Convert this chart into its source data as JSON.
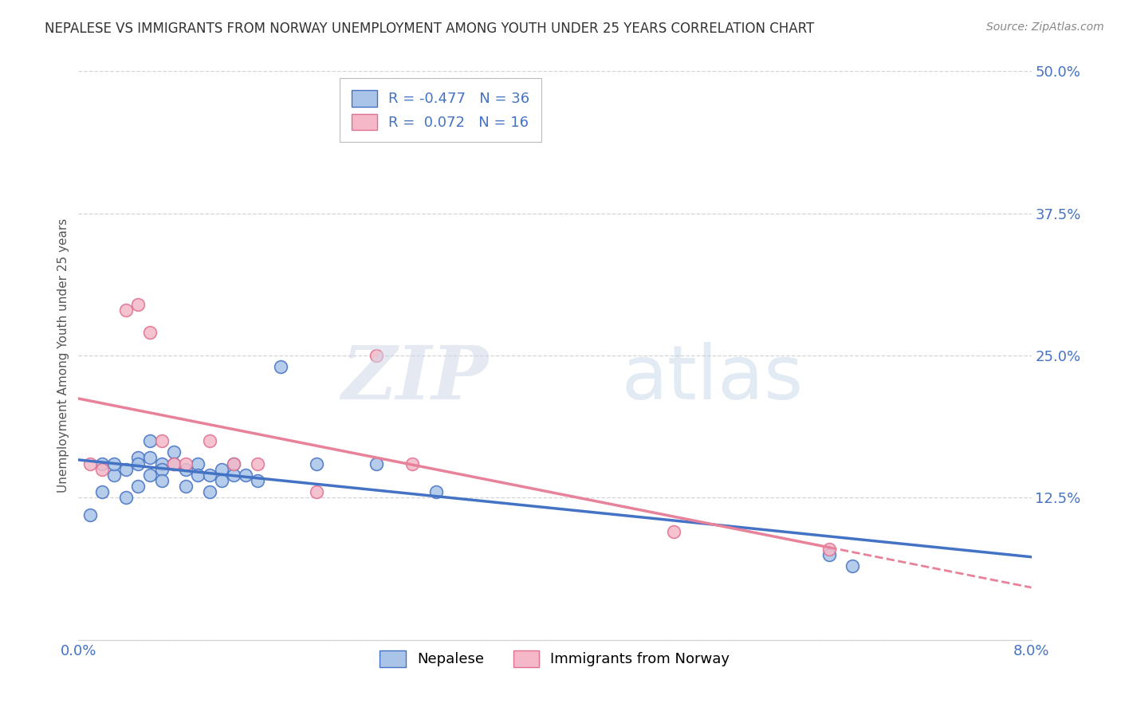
{
  "title": "NEPALESE VS IMMIGRANTS FROM NORWAY UNEMPLOYMENT AMONG YOUTH UNDER 25 YEARS CORRELATION CHART",
  "source": "Source: ZipAtlas.com",
  "ylabel": "Unemployment Among Youth under 25 years",
  "xmin": 0.0,
  "xmax": 0.08,
  "ymin": 0.0,
  "ymax": 0.5,
  "yticks": [
    0.0,
    0.125,
    0.25,
    0.375,
    0.5
  ],
  "ytick_labels": [
    "",
    "12.5%",
    "25.0%",
    "37.5%",
    "50.0%"
  ],
  "xticks": [
    0.0,
    0.02,
    0.04,
    0.06,
    0.08
  ],
  "xtick_labels": [
    "0.0%",
    "",
    "",
    "",
    "8.0%"
  ],
  "nepalese_color": "#aac4e8",
  "norway_color": "#f4b8c8",
  "nepalese_edge_color": "#4472c4",
  "norway_edge_color": "#e07090",
  "nepalese_line_color": "#4472c4",
  "norway_line_color": "#e8829a",
  "label_color": "#4472c4",
  "R_nepalese": -0.477,
  "N_nepalese": 36,
  "R_norway": 0.072,
  "N_norway": 16,
  "legend_label_nepalese": "Nepalese",
  "legend_label_norway": "Immigrants from Norway",
  "nepalese_x": [
    0.001,
    0.002,
    0.002,
    0.003,
    0.003,
    0.004,
    0.004,
    0.005,
    0.005,
    0.005,
    0.006,
    0.006,
    0.006,
    0.007,
    0.007,
    0.007,
    0.008,
    0.008,
    0.009,
    0.009,
    0.01,
    0.01,
    0.011,
    0.011,
    0.012,
    0.012,
    0.013,
    0.013,
    0.014,
    0.015,
    0.017,
    0.02,
    0.025,
    0.03,
    0.063,
    0.065
  ],
  "nepalese_y": [
    0.11,
    0.13,
    0.155,
    0.145,
    0.155,
    0.125,
    0.15,
    0.16,
    0.155,
    0.135,
    0.175,
    0.16,
    0.145,
    0.155,
    0.15,
    0.14,
    0.165,
    0.155,
    0.15,
    0.135,
    0.155,
    0.145,
    0.145,
    0.13,
    0.15,
    0.14,
    0.155,
    0.145,
    0.145,
    0.14,
    0.24,
    0.155,
    0.155,
    0.13,
    0.075,
    0.065
  ],
  "norway_x": [
    0.001,
    0.002,
    0.004,
    0.005,
    0.006,
    0.007,
    0.008,
    0.009,
    0.011,
    0.013,
    0.015,
    0.02,
    0.025,
    0.028,
    0.05,
    0.063
  ],
  "norway_y": [
    0.155,
    0.15,
    0.29,
    0.295,
    0.27,
    0.175,
    0.155,
    0.155,
    0.175,
    0.155,
    0.155,
    0.13,
    0.25,
    0.155,
    0.095,
    0.08
  ],
  "watermark_zip": "ZIP",
  "watermark_atlas": "atlas",
  "background_color": "#ffffff",
  "grid_color": "#d0d0d0",
  "title_fontsize": 12,
  "tick_fontsize": 13,
  "legend_fontsize": 13,
  "source_fontsize": 10
}
